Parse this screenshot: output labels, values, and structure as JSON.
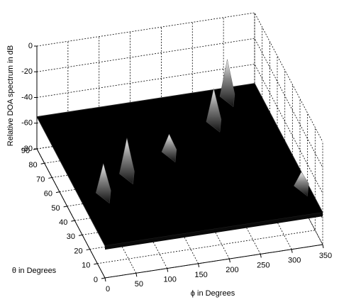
{
  "chart_data": {
    "type": "surface3d",
    "xlabel": "ϕ in Degrees",
    "ylabel": "θ in Degrees",
    "zlabel": "Relative DOA spectrum in dB",
    "xlim": [
      0,
      350
    ],
    "xticks": [
      0,
      50,
      100,
      150,
      200,
      250,
      300,
      350
    ],
    "ylim": [
      0,
      90
    ],
    "yticks": [
      0,
      10,
      20,
      30,
      40,
      50,
      60,
      70,
      80,
      90
    ],
    "zlim": [
      -80,
      0
    ],
    "zticks": [
      0,
      -20,
      -40,
      -60,
      -80
    ],
    "floor_db": -55,
    "x": [
      40,
      90,
      170,
      260,
      300,
      340
    ],
    "y": [
      35,
      45,
      55,
      70,
      85,
      20
    ],
    "z": [
      -33,
      -28,
      -42,
      -30,
      -27,
      -45
    ],
    "color": "#000000",
    "grid": true
  }
}
